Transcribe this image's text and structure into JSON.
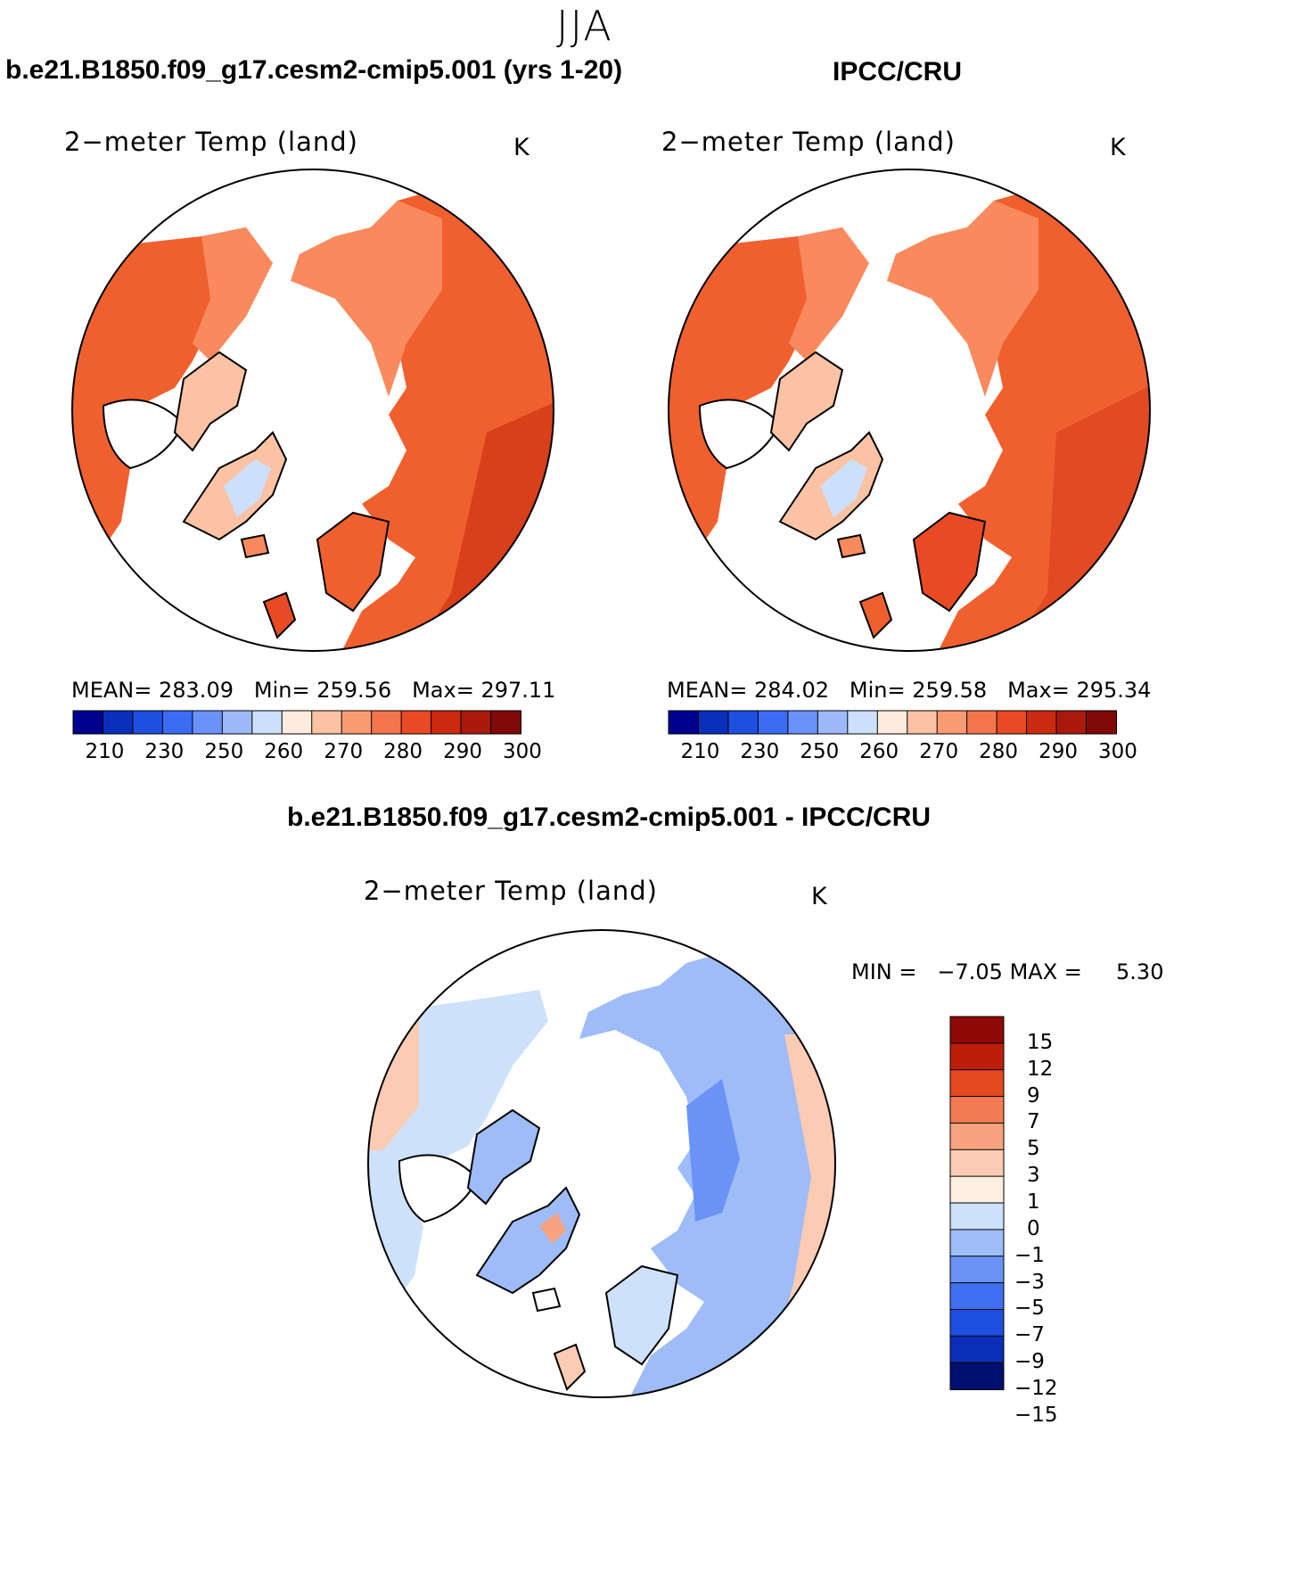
{
  "figure": {
    "season": "JJA",
    "colors": {
      "abs_scale": [
        "#00008f",
        "#0a2fbd",
        "#1e4fe0",
        "#3c6cf4",
        "#6a92f8",
        "#9eb9fa",
        "#cde0fb",
        "#fdebdc",
        "#fbc2a4",
        "#f99a73",
        "#f3754b",
        "#e94a23",
        "#cc2a10",
        "#a91a0c",
        "#7f0a08"
      ],
      "diff_scale": [
        "#00106e",
        "#0a2eb8",
        "#1f4fe0",
        "#3f70f2",
        "#6a93f5",
        "#9dbcf8",
        "#cde1fb",
        "#fdeee2",
        "#fbcbb4",
        "#f7a37f",
        "#f37b52",
        "#e4491f",
        "#bd1e0a",
        "#8e0a05"
      ]
    },
    "panels": [
      {
        "header": "b.e21.B1850.f09_g17.cesm2-cmip5.001 (yrs 1-20)",
        "variable": "2−meter Temp (land)",
        "units": "K",
        "mean_label": "MEAN=",
        "mean": "283.09",
        "min_label": "Min=",
        "min": "259.56",
        "max_label": "Max=",
        "max": "297.11",
        "colorbar_ticks": [
          "210",
          "230",
          "250",
          "260",
          "270",
          "280",
          "290",
          "300"
        ]
      },
      {
        "header": "IPCC/CRU",
        "variable": "2−meter Temp (land)",
        "units": "K",
        "mean_label": "MEAN=",
        "mean": "284.02",
        "min_label": "Min=",
        "min": "259.58",
        "max_label": "Max=",
        "max": "295.34",
        "colorbar_ticks": [
          "210",
          "230",
          "250",
          "260",
          "270",
          "280",
          "290",
          "300"
        ]
      }
    ],
    "difference": {
      "header": "b.e21.B1850.f09_g17.cesm2-cmip5.001 - IPCC/CRU",
      "variable": "2−meter Temp (land)",
      "units": "K",
      "min_label": "MIN =",
      "min": "−7.05",
      "max_label": "MAX =",
      "max": "5.30",
      "colorbar_ticks": [
        "15",
        "12",
        "9",
        "7",
        "5",
        "3",
        "1",
        "0",
        "−1",
        "−3",
        "−5",
        "−7",
        "−9",
        "−12",
        "−15"
      ]
    }
  }
}
